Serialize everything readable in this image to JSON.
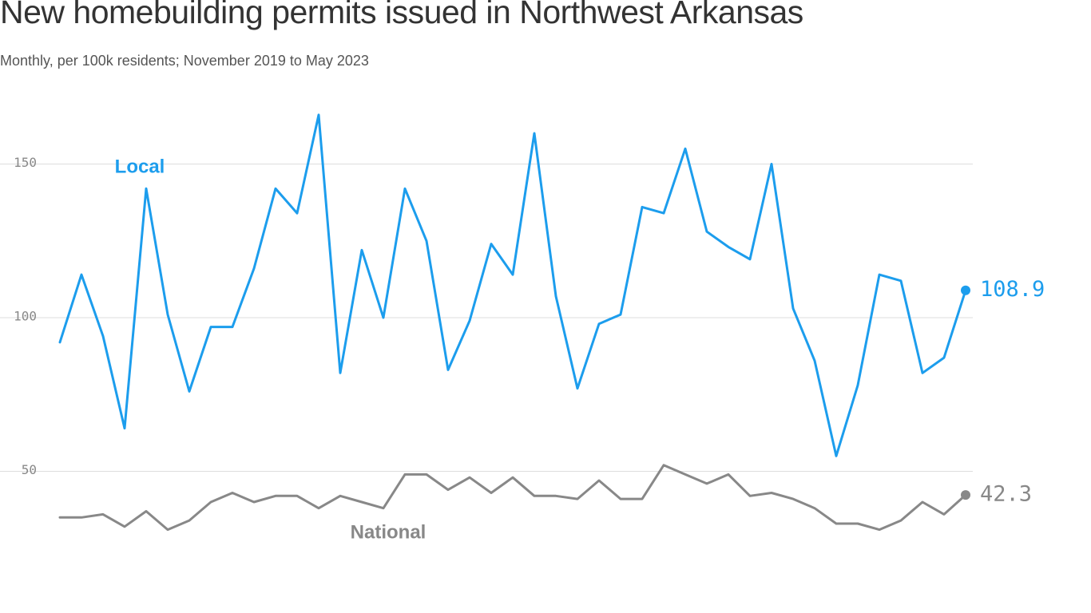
{
  "chart_data": {
    "type": "line",
    "title": "New homebuilding permits issued in Northwest Arkansas",
    "subtitle": "Monthly, per 100k residents; November 2019 to May 2023",
    "ylim": [
      0,
      170
    ],
    "yticks": [
      50,
      100,
      150
    ],
    "grid": true,
    "series": [
      {
        "name": "Local",
        "color": "#1c9ded",
        "end_label": "108.9",
        "values": [
          92,
          114,
          94,
          64,
          142,
          101,
          76,
          97,
          97,
          116,
          142,
          134,
          166,
          82,
          122,
          100,
          142,
          125,
          83,
          99,
          124,
          114,
          160,
          107,
          77,
          98,
          101,
          136,
          134,
          155,
          128,
          123,
          119,
          150,
          103,
          86,
          55,
          78,
          114,
          112,
          82,
          87,
          108.9
        ]
      },
      {
        "name": "National",
        "color": "#888888",
        "end_label": "42.3",
        "values": [
          35,
          35,
          36,
          32,
          37,
          31,
          34,
          40,
          43,
          40,
          42,
          42,
          38,
          42,
          40,
          38,
          49,
          49,
          44,
          48,
          43,
          48,
          42,
          42,
          41,
          47,
          41,
          41,
          52,
          49,
          46,
          49,
          42,
          43,
          41,
          38,
          33,
          33,
          31,
          34,
          40,
          36,
          42.3
        ]
      }
    ]
  }
}
